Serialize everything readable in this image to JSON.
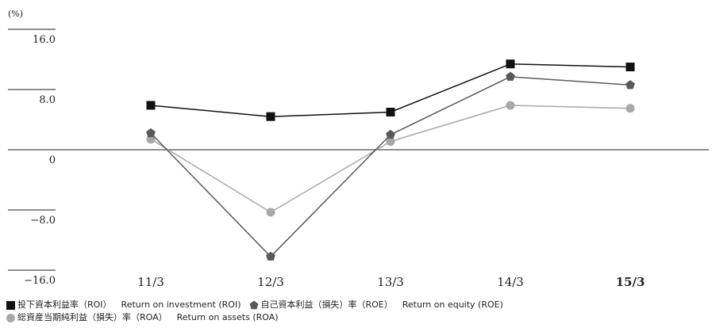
{
  "chart_data": {
    "type": "line",
    "unit": "(%)",
    "categories": [
      "11/3",
      "12/3",
      "13/3",
      "14/3",
      "15/3"
    ],
    "highlight_category": "15/3",
    "yticks": [
      16.0,
      8.0,
      0,
      -8.0,
      -16.0
    ],
    "ytick_labels": [
      "16.0",
      "8.0",
      "0",
      "−8.0",
      "−16.0"
    ],
    "ylim": [
      -16.0,
      16.0
    ],
    "zero_line": true,
    "series": [
      {
        "name": "投下資本利益率（ROI）",
        "name_en": "Return on investment (ROI)",
        "marker": "square",
        "color": "#111111",
        "values": [
          5.9,
          4.4,
          5.0,
          11.4,
          11.0
        ]
      },
      {
        "name": "自己資本利益（損失）率（ROE）",
        "name_en": "Return on equity (ROE)",
        "marker": "pentagon",
        "color": "#5a5a5a",
        "values": [
          2.2,
          -14.2,
          2.0,
          9.7,
          8.6
        ]
      },
      {
        "name": "総資産当期純利益（損失）率（ROA）",
        "name_en": "Return on assets (ROA)",
        "marker": "circle",
        "color": "#a8a8a8",
        "values": [
          1.4,
          -8.3,
          1.1,
          5.9,
          5.5
        ]
      }
    ]
  }
}
